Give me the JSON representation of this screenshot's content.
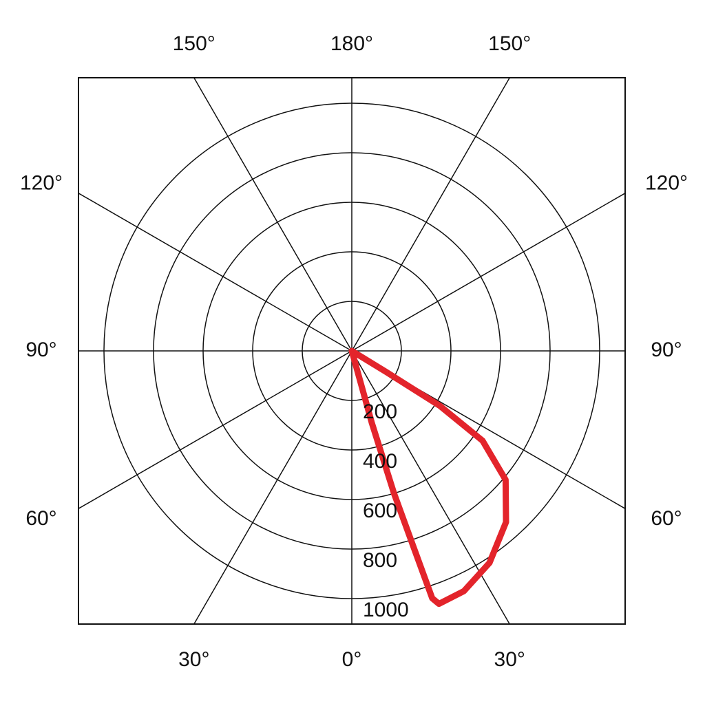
{
  "chart_data": {
    "type": "polar",
    "x": [
      60,
      58.5,
      58,
      55.5,
      50,
      42,
      33,
      25,
      19,
      18,
      17.5,
      16.5,
      15.5,
      15
    ],
    "values": [
      0,
      160,
      420,
      640,
      810,
      930,
      1020,
      1070,
      1080,
      1050,
      840,
      600,
      300,
      0
    ],
    "color": "#e3242b",
    "rlim": [
      0,
      1000
    ],
    "rticks": [
      200,
      400,
      600,
      800,
      1000
    ],
    "angle_ticks": [
      {
        "value": 0,
        "label": "0°"
      },
      {
        "value": 30,
        "label": "30°"
      },
      {
        "value": 60,
        "label": "60°"
      },
      {
        "value": 90,
        "label": "90°"
      },
      {
        "value": 120,
        "label": "120°"
      },
      {
        "value": 150,
        "label": "150°"
      },
      {
        "value": 180,
        "label": "180°"
      }
    ],
    "grid": true
  }
}
